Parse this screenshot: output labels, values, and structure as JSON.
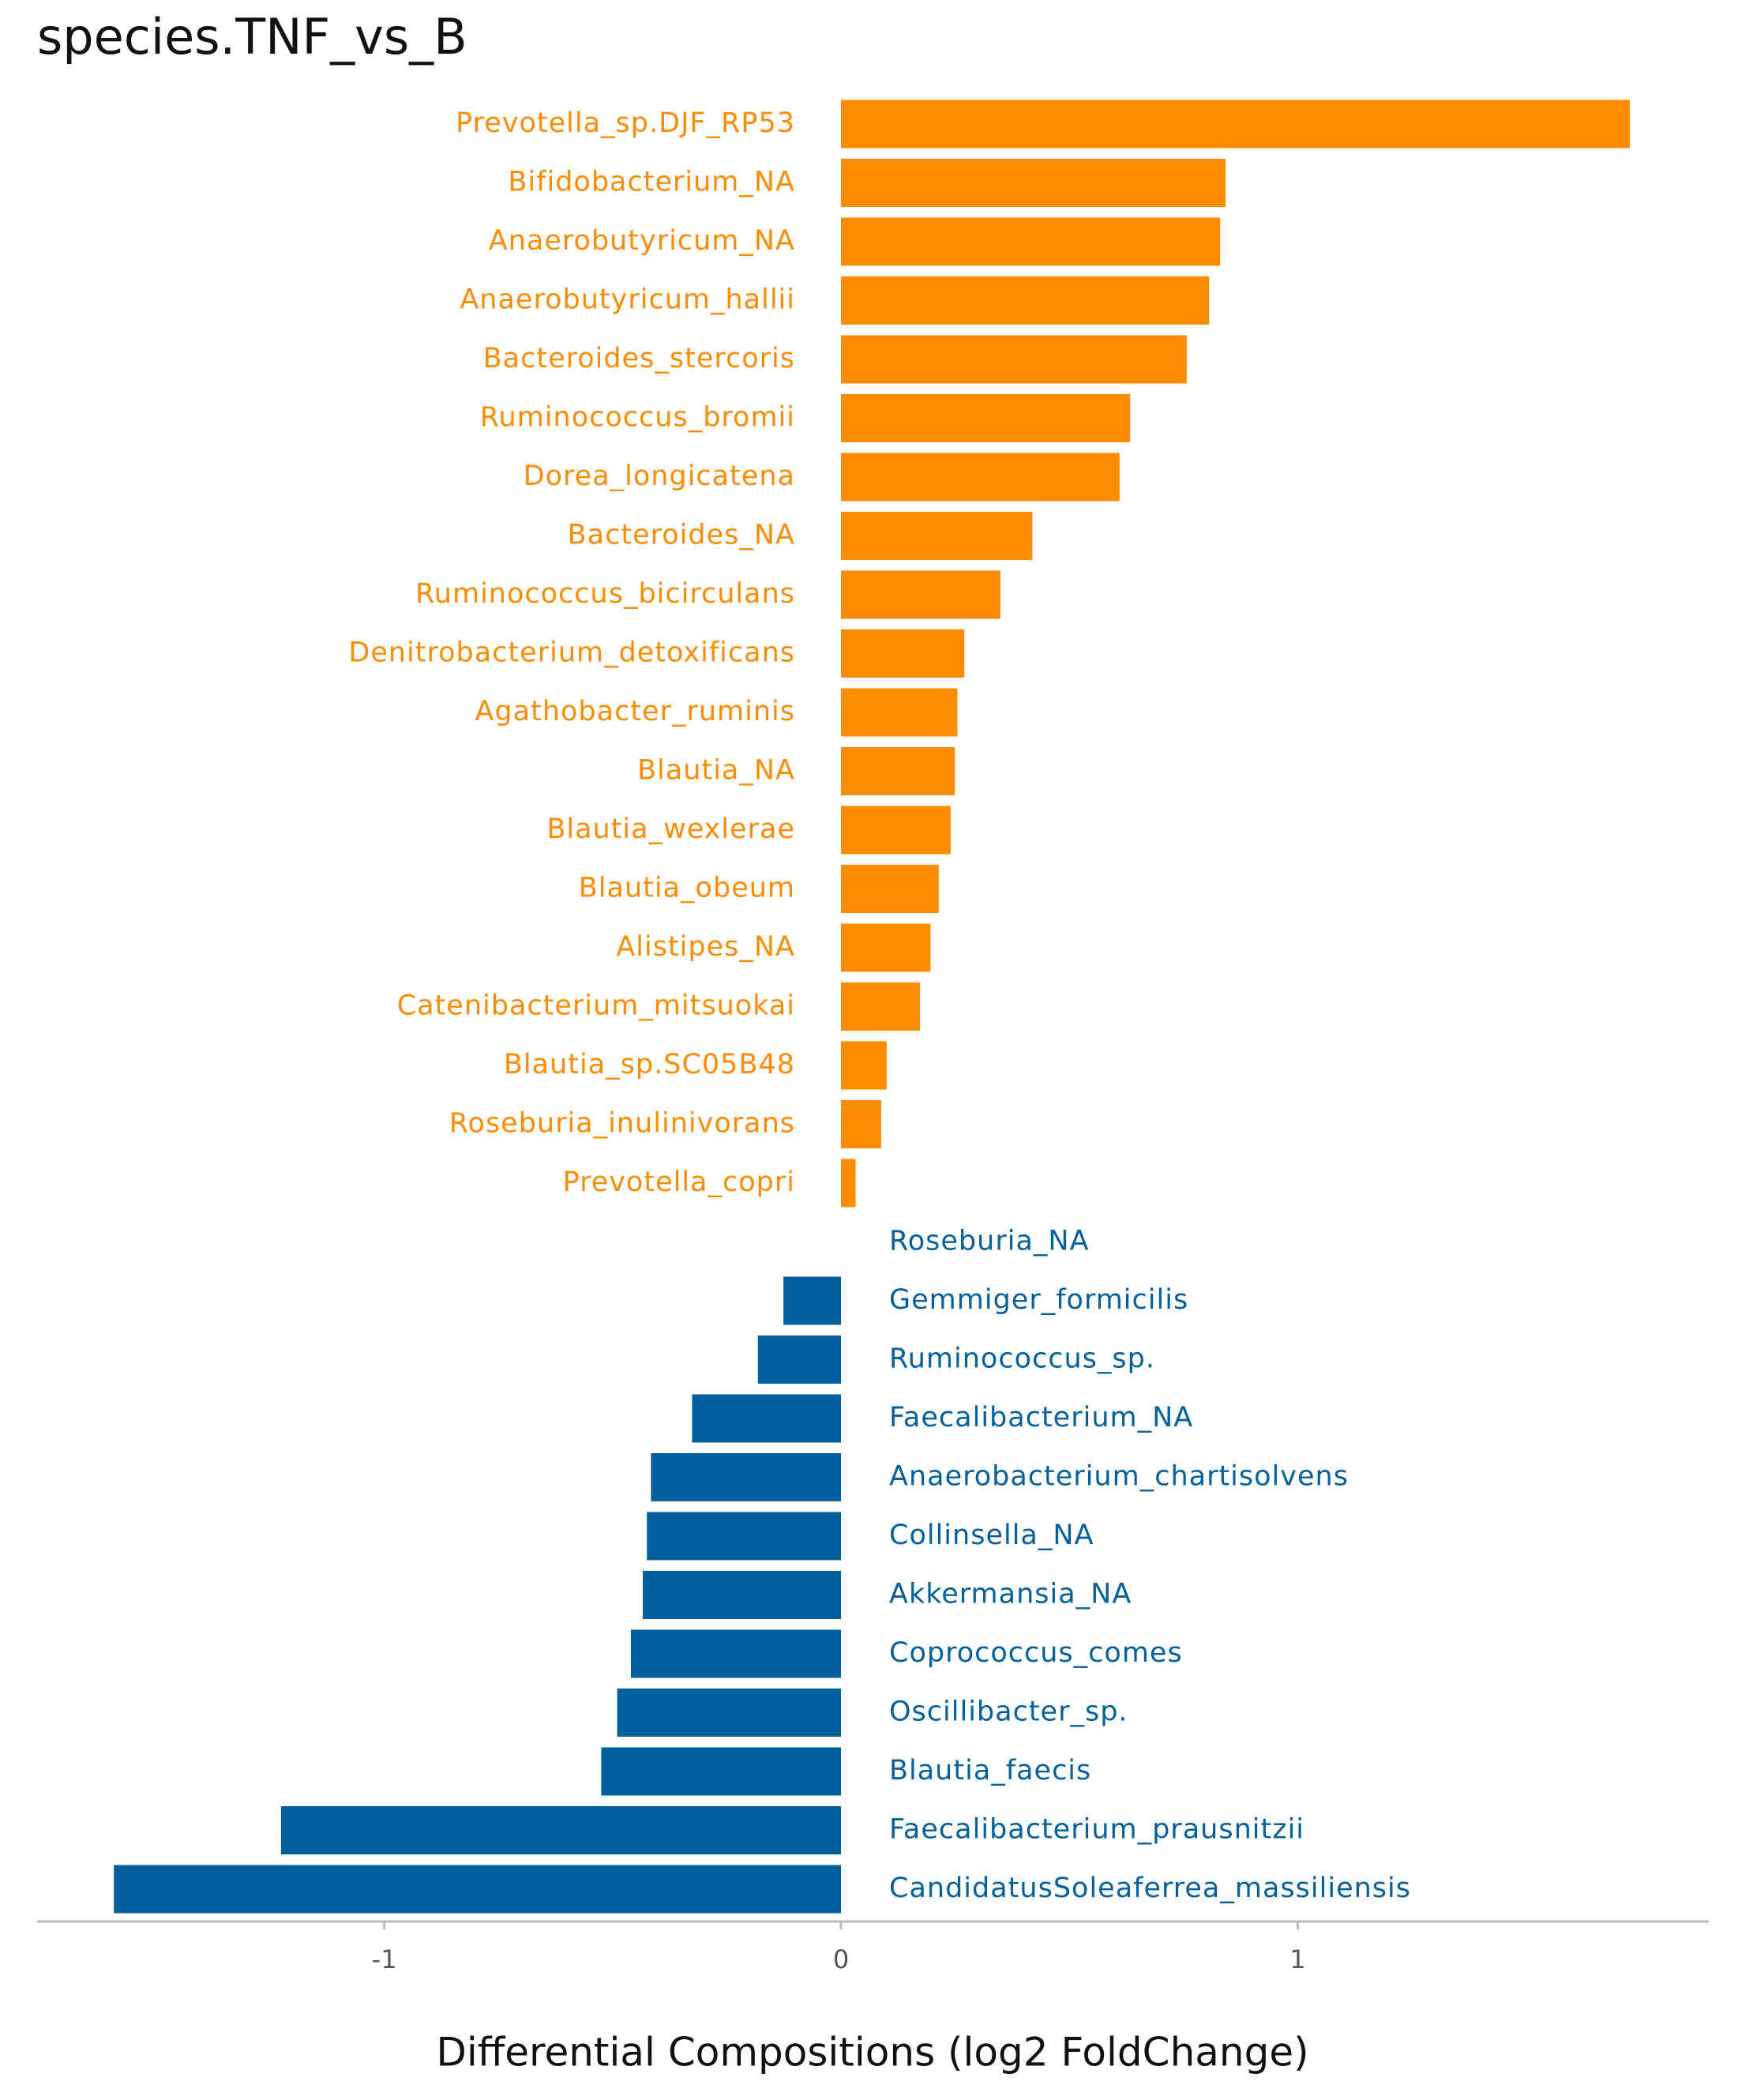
{
  "chart_data": {
    "type": "bar",
    "orientation": "horizontal",
    "title": "species.TNF_vs_B",
    "x_label": "Differential Compositions (log2 FoldChange)",
    "categories": [
      "Prevotella_sp.DJF_RP53",
      "Bifidobacterium_NA",
      "Anaerobutyricum_NA",
      "Anaerobutyricum_hallii",
      "Bacteroides_stercoris",
      "Ruminococcus_bromii",
      "Dorea_longicatena",
      "Bacteroides_NA",
      "Ruminococcus_bicirculans",
      "Denitrobacterium_detoxificans",
      "Agathobacter_ruminis",
      "Blautia_NA",
      "Blautia_wexlerae",
      "Blautia_obeum",
      "Alistipes_NA",
      "Catenibacterium_mitsuokai",
      "Blautia_sp.SC05B48",
      "Roseburia_inulinivorans",
      "Prevotella_copri",
      "Roseburia_NA",
      "Gemmiger_formicilis",
      "Ruminococcus_sp.",
      "Faecalibacterium_NA",
      "Anaerobacterium_chartisolvens",
      "Collinsella_NA",
      "Akkermansia_NA",
      "Coprococcus_comes",
      "Oscillibacter_sp.",
      "Blautia_faecis",
      "Faecalibacterium_prausnitzii",
      "CandidatusSoleaferrea_massiliensis"
    ],
    "values": [
      1.727,
      0.842,
      0.83,
      0.806,
      0.757,
      0.633,
      0.61,
      0.419,
      0.349,
      0.27,
      0.255,
      0.249,
      0.24,
      0.214,
      0.196,
      0.173,
      0.1,
      0.088,
      0.032,
      0,
      -0.126,
      -0.182,
      -0.326,
      -0.416,
      -0.425,
      -0.434,
      -0.46,
      -0.49,
      -0.525,
      -1.226,
      -1.592
    ],
    "positive_color": "#ff8c00",
    "negative_color": "#00609c",
    "xlim": [
      -1.76,
      1.9
    ],
    "xticks": [
      -1,
      0,
      1
    ],
    "grid": false
  }
}
